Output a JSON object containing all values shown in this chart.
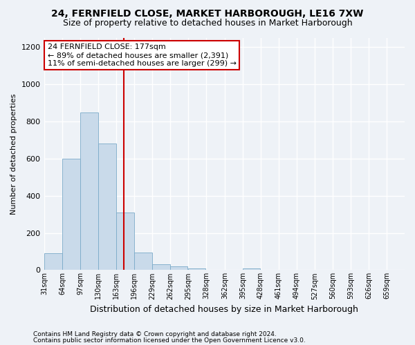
{
  "title1": "24, FERNFIELD CLOSE, MARKET HARBOROUGH, LE16 7XW",
  "title2": "Size of property relative to detached houses in Market Harborough",
  "xlabel": "Distribution of detached houses by size in Market Harborough",
  "ylabel": "Number of detached properties",
  "footer1": "Contains HM Land Registry data © Crown copyright and database right 2024.",
  "footer2": "Contains public sector information licensed under the Open Government Licence v3.0.",
  "annotation_line1": "24 FERNFIELD CLOSE: 177sqm",
  "annotation_line2": "← 89% of detached houses are smaller (2,391)",
  "annotation_line3": "11% of semi-detached houses are larger (299) →",
  "property_size": 177,
  "bar_color": "#c9daea",
  "bar_edge_color": "#7aaac8",
  "vline_color": "#cc0000",
  "bin_edges": [
    31,
    64,
    97,
    130,
    163,
    196,
    229,
    262,
    295,
    328,
    362,
    395,
    428,
    461,
    494,
    527,
    560,
    593,
    626,
    659,
    692
  ],
  "bar_heights": [
    90,
    600,
    850,
    680,
    310,
    95,
    30,
    20,
    10,
    0,
    0,
    10,
    0,
    0,
    0,
    0,
    0,
    0,
    0,
    0
  ],
  "ylim": [
    0,
    1250
  ],
  "yticks": [
    0,
    200,
    400,
    600,
    800,
    1000,
    1200
  ],
  "background_color": "#eef2f7",
  "annotation_box_color": "#ffffff",
  "annotation_box_edge": "#cc0000",
  "grid_color": "#ffffff",
  "title1_fontsize": 10,
  "title2_fontsize": 9,
  "ylabel_fontsize": 8,
  "xlabel_fontsize": 9,
  "footer_fontsize": 6.5,
  "annot_fontsize": 8
}
